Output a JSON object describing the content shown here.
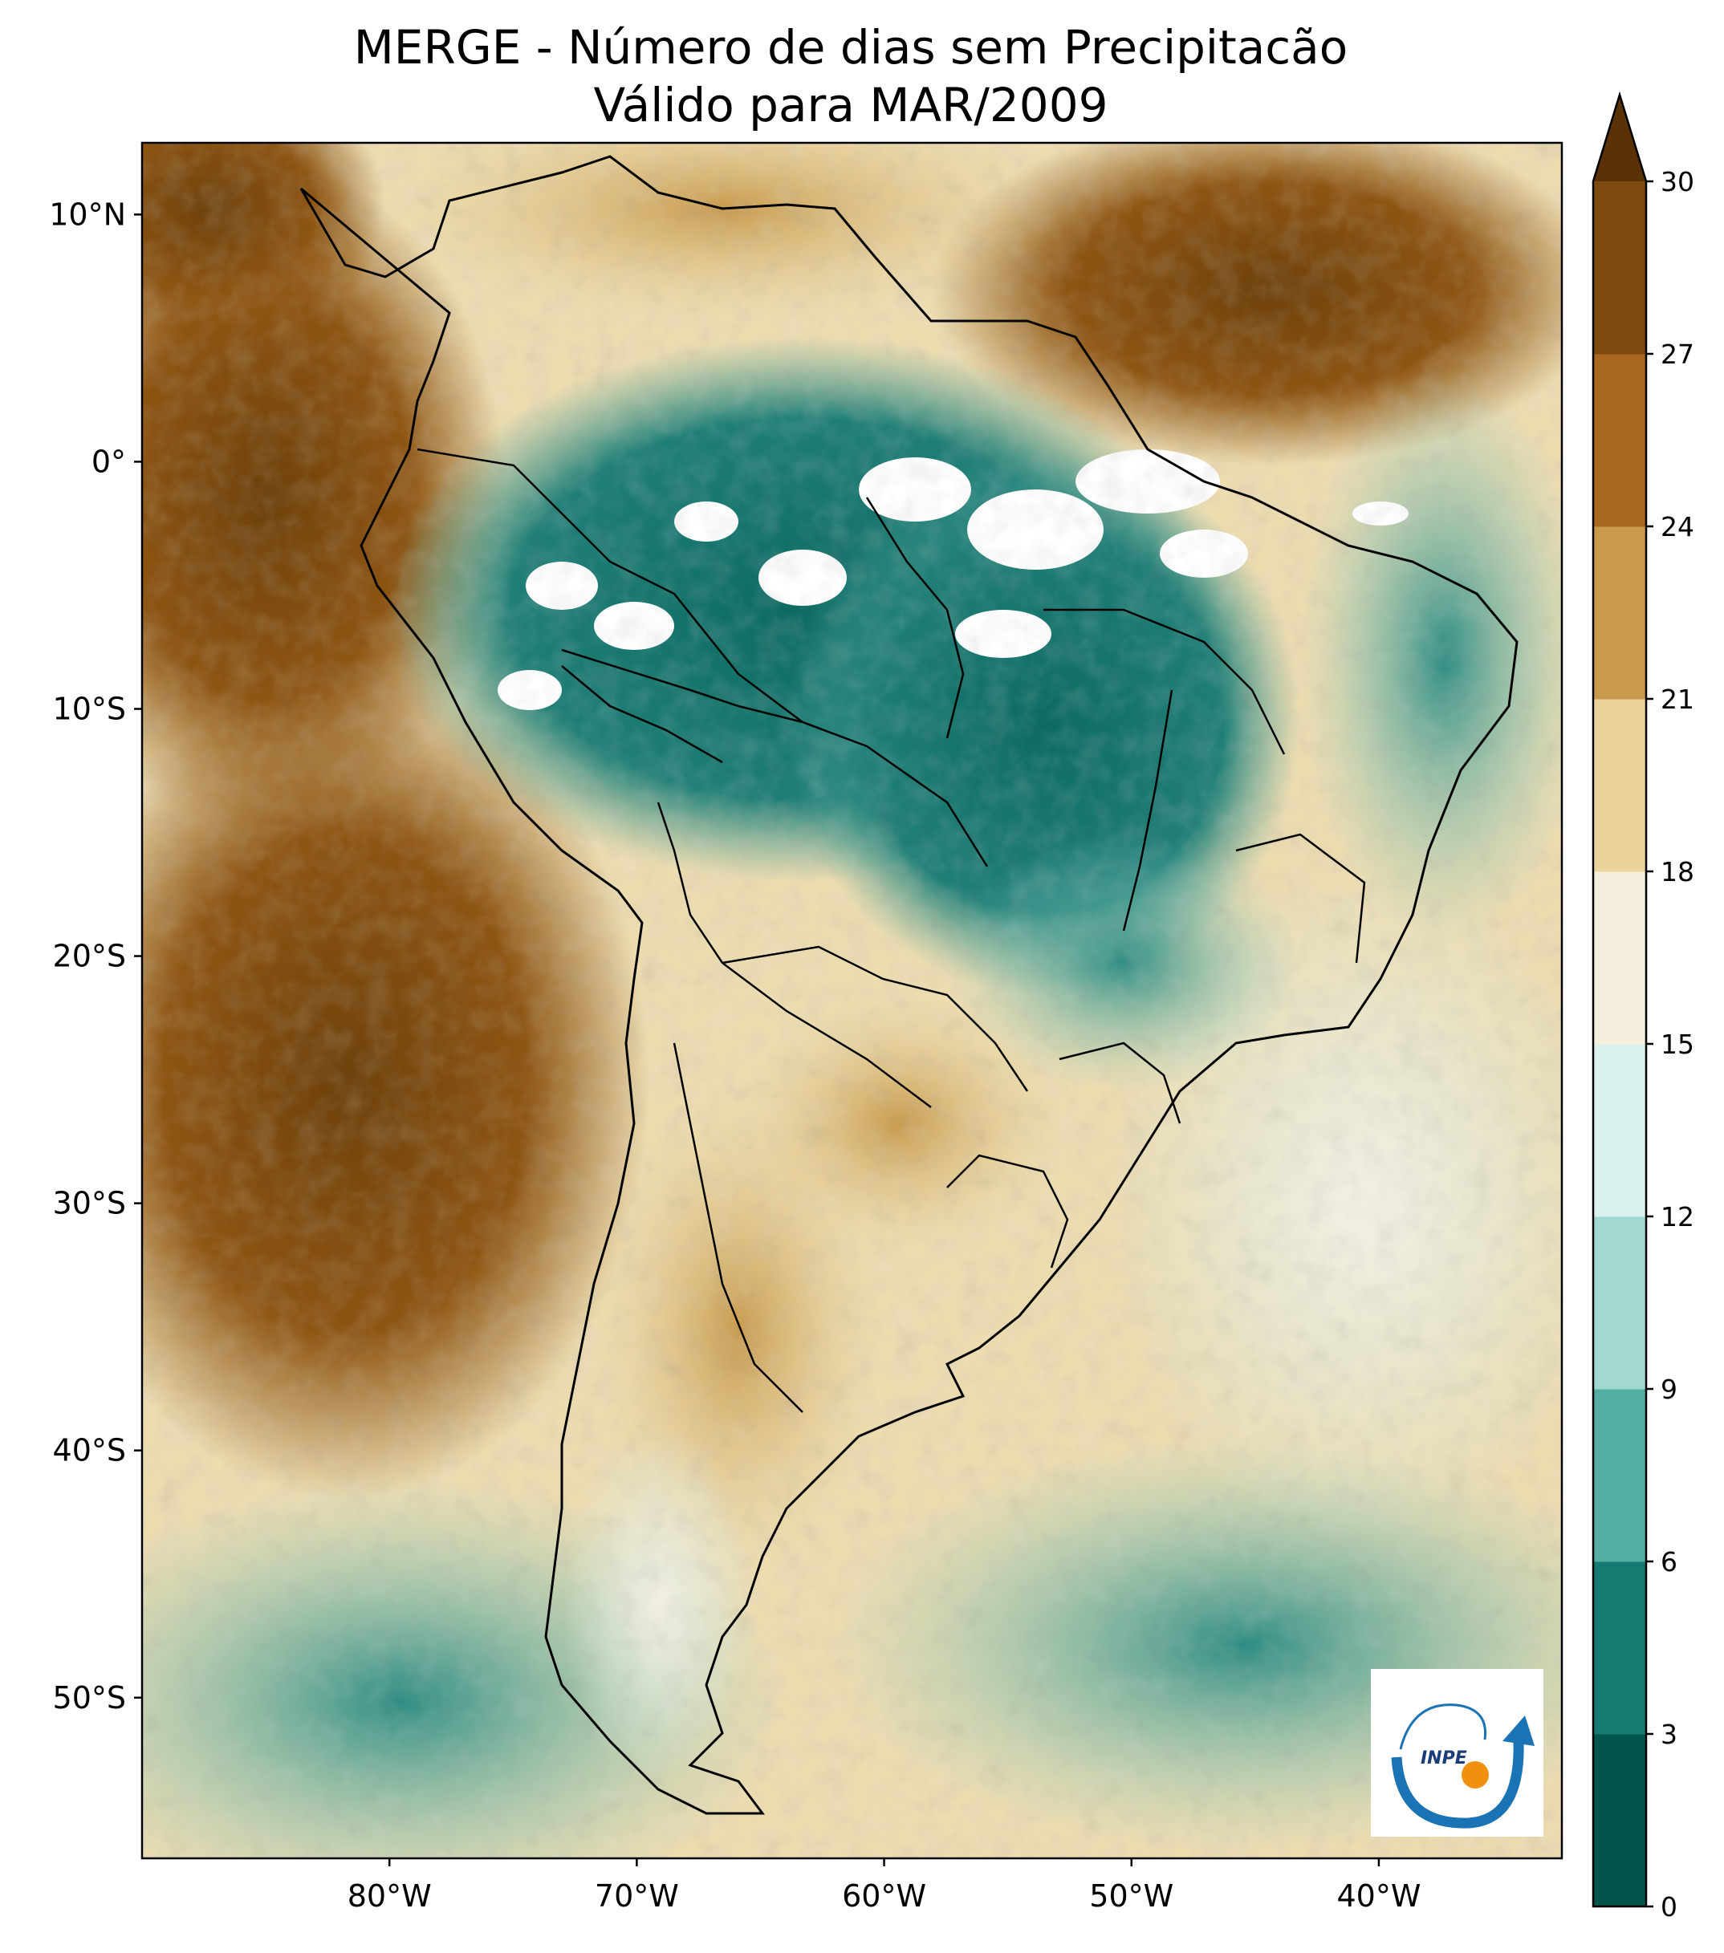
{
  "title": {
    "line1": "MERGE - Número de dias sem Precipitacão",
    "line2": "Válido para MAR/2009"
  },
  "map": {
    "x_ticks": [
      {
        "lon": -80,
        "label": "80°W"
      },
      {
        "lon": -70,
        "label": "70°W"
      },
      {
        "lon": -60,
        "label": "60°W"
      },
      {
        "lon": -50,
        "label": "50°W"
      },
      {
        "lon": -40,
        "label": "40°W"
      }
    ],
    "y_ticks": [
      {
        "lat": 10,
        "label": "10°N"
      },
      {
        "lat": 0,
        "label": "0°"
      },
      {
        "lat": -10,
        "label": "10°S"
      },
      {
        "lat": -20,
        "label": "20°S"
      },
      {
        "lat": -30,
        "label": "30°S"
      },
      {
        "lat": -40,
        "label": "40°S"
      },
      {
        "lat": -50,
        "label": "50°S"
      }
    ],
    "lon_range": [
      -90,
      -32.6
    ],
    "lat_range": [
      -56.5,
      12.9
    ],
    "ocean_pattern_note": "",
    "colors": {
      "no_data": "#ffffff"
    }
  },
  "colorbar": {
    "levels": [
      0,
      3,
      6,
      9,
      12,
      15,
      18,
      21,
      24,
      27,
      30
    ],
    "labels": [
      "0",
      "3",
      "6",
      "9",
      "12",
      "15",
      "18",
      "21",
      "24",
      "27",
      "30"
    ],
    "colors": [
      "#01554a",
      "#167a73",
      "#55aea2",
      "#a1d8cf",
      "#d9f0ed",
      "#f5efdd",
      "#ebd39c",
      "#c99a4c",
      "#a9671f",
      "#7c4a0e"
    ],
    "extend_color": "#5a3206",
    "extend": "max"
  },
  "logo": {
    "text": "INPE",
    "colors": {
      "arc": "#1a73b5",
      "dot": "#f0900e"
    }
  }
}
